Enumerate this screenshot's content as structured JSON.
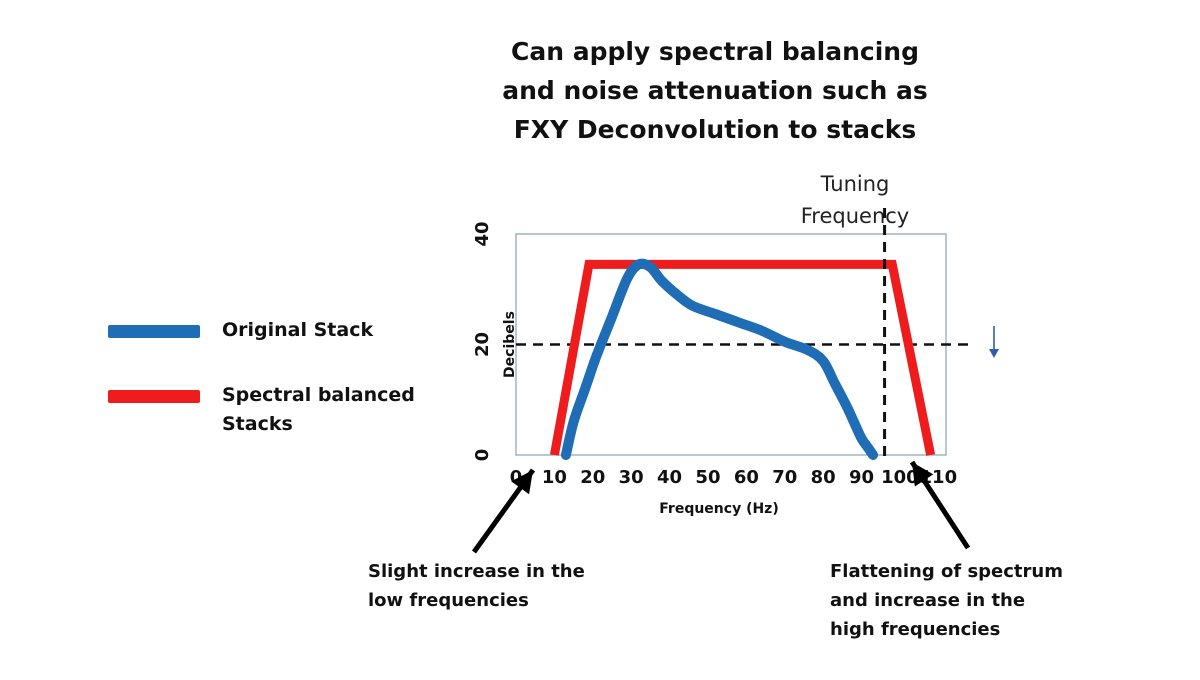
{
  "chart_data": {
    "type": "line",
    "title": "Can apply spectral balancing and noise attenuation such as FXY Deconvolution to stacks",
    "title_lines": [
      "Can apply spectral balancing",
      "and noise attenuation such as",
      "FXY Deconvolution to stacks"
    ],
    "xlabel": "Frequency (Hz)",
    "ylabel": "Decibels",
    "xlim": [
      0,
      112
    ],
    "ylim": [
      0,
      40
    ],
    "xticks": [
      "0",
      "10",
      "20",
      "30",
      "40",
      "50",
      "60",
      "70",
      "80",
      "90",
      "100",
      "110"
    ],
    "yticks": [
      "0",
      "20",
      "40"
    ],
    "grid": false,
    "legend_position": "left",
    "series": [
      {
        "name": "Original Stack",
        "color": "#1f6db5",
        "x": [
          13,
          15,
          18,
          21,
          25,
          29,
          32,
          35,
          38,
          42,
          46,
          52,
          58,
          64,
          70,
          76,
          80,
          83,
          86,
          88,
          90,
          91.5,
          93
        ],
        "y": [
          0,
          6,
          12,
          18,
          25,
          32,
          34.5,
          34,
          31.5,
          29,
          27,
          25.5,
          24,
          22.5,
          20.5,
          19,
          17,
          13,
          9,
          6,
          3,
          1.5,
          0
        ]
      },
      {
        "name": "Spectral balanced Stacks",
        "legend_lines": [
          "Spectral balanced",
          "Stacks"
        ],
        "color": "#ee1c1c",
        "x": [
          10,
          19,
          98,
          108
        ],
        "y": [
          0,
          34.5,
          34.5,
          0
        ]
      }
    ],
    "reference_lines": [
      {
        "orientation": "horizontal",
        "value": 20,
        "style": "dashed",
        "color": "#111111"
      },
      {
        "orientation": "vertical",
        "value": 96,
        "style": "dashed",
        "color": "#111111",
        "label_lines": [
          "Tuning",
          "Frequency"
        ]
      }
    ],
    "annotations": [
      {
        "lines": [
          "Slight increase in the",
          "low frequencies"
        ],
        "points_to_x": 10
      },
      {
        "lines": [
          "Flattening of spectrum",
          "and increase in the",
          "high frequencies"
        ],
        "points_to_x": 107
      }
    ],
    "extra_marks": [
      {
        "type": "small-down-arrow",
        "color": "#2e5fa8",
        "position": "right of chart"
      }
    ]
  }
}
